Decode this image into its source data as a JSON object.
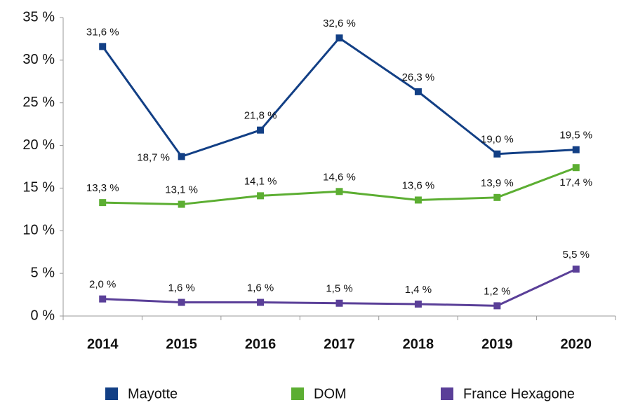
{
  "chart_data": {
    "type": "line",
    "categories": [
      "2014",
      "2015",
      "2016",
      "2017",
      "2018",
      "2019",
      "2020"
    ],
    "series": [
      {
        "name": "Mayotte",
        "color": "#123f85",
        "values": [
          31.6,
          18.7,
          21.8,
          32.6,
          26.3,
          19.0,
          19.5
        ],
        "value_labels": [
          "31,6 %",
          "18,7 %",
          "21,8 %",
          "32,6 %",
          "26,3 %",
          "19,0 %",
          "19,5 %"
        ]
      },
      {
        "name": "DOM",
        "color": "#5cae32",
        "values": [
          13.3,
          13.1,
          14.1,
          14.6,
          13.6,
          13.9,
          17.4
        ],
        "value_labels": [
          "13,3 %",
          "13,1 %",
          "14,1 %",
          "14,6 %",
          "13,6 %",
          "13,9 %",
          "17,4 %"
        ]
      },
      {
        "name": "France Hexagone",
        "color": "#5a3f98",
        "values": [
          2.0,
          1.6,
          1.6,
          1.5,
          1.4,
          1.2,
          5.5
        ],
        "value_labels": [
          "2,0 %",
          "1,6 %",
          "1,6 %",
          "1,5 %",
          "1,4 %",
          "1,2 %",
          "5,5 %"
        ]
      }
    ],
    "ylim": [
      0,
      35
    ],
    "yticks": [
      {
        "value": 0,
        "label": "0 %"
      },
      {
        "value": 5,
        "label": "5 %"
      },
      {
        "value": 10,
        "label": "10 %"
      },
      {
        "value": 15,
        "label": "15 %"
      },
      {
        "value": 20,
        "label": "20 %"
      },
      {
        "value": 25,
        "label": "25 %"
      },
      {
        "value": 30,
        "label": "30 %"
      },
      {
        "value": 35,
        "label": "35 %"
      }
    ],
    "legend": "bottom"
  }
}
